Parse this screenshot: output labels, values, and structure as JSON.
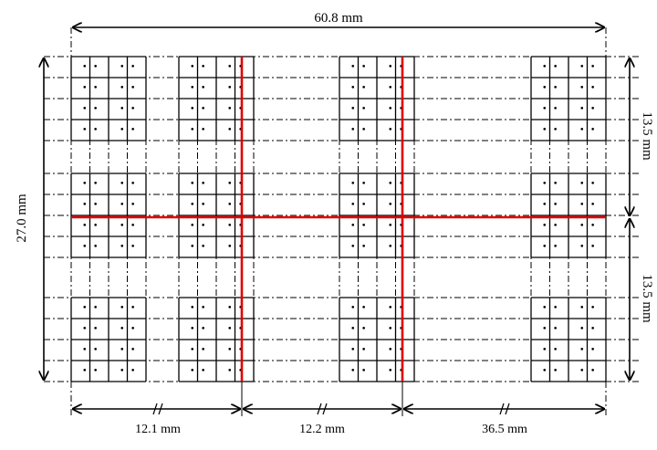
{
  "dimensions": {
    "total_width": "60.8 mm",
    "total_height": "27.0 mm",
    "half_height_upper": "13.5 mm",
    "half_height_lower": "13.5 mm",
    "segment_1": "12.1 mm",
    "segment_2": "12.2 mm",
    "segment_3": "36.5 mm"
  },
  "colors": {
    "grid": "#000000",
    "cut_line": "#e00000"
  },
  "layout": {
    "block_columns": 4,
    "block_rows": 3,
    "cells_per_block_x": 4,
    "cells_per_block_y": 4
  }
}
